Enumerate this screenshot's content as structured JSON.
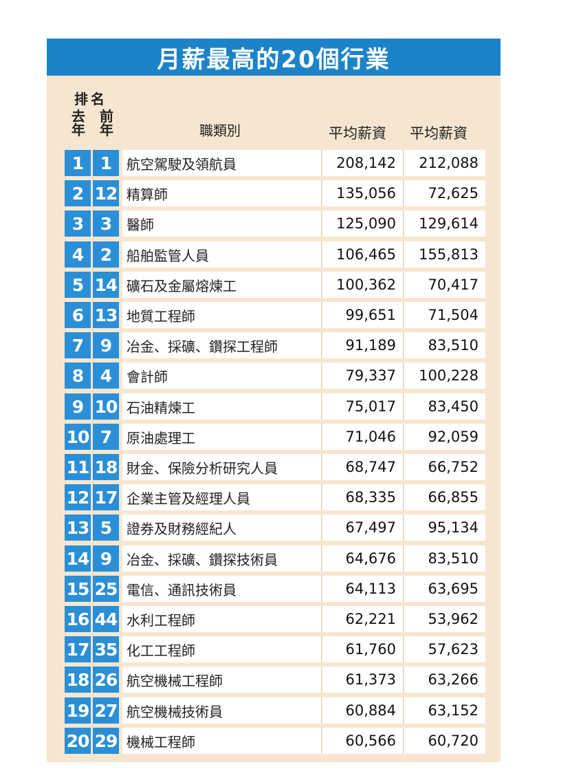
{
  "title": "月薪最高的20個行業",
  "header": {
    "rank": "排名",
    "last_year": "去年",
    "prev_year": "前年",
    "job_category": "職類別",
    "salary_col1": "平均薪資",
    "salary_col2": "平均薪資"
  },
  "colors": {
    "title_bar": "#1d83c9",
    "rank_cell": "#2a8fd6",
    "card_bg": "#f7e6cf"
  },
  "rows": [
    {
      "last": "1",
      "prev": "1",
      "job": "航空駕駛及領航員",
      "salary_last": "208,142",
      "salary_prev": "212,088"
    },
    {
      "last": "2",
      "prev": "12",
      "job": "精算師",
      "salary_last": "135,056",
      "salary_prev": "72,625"
    },
    {
      "last": "3",
      "prev": "3",
      "job": "醫師",
      "salary_last": "125,090",
      "salary_prev": "129,614"
    },
    {
      "last": "4",
      "prev": "2",
      "job": "船舶監管人員",
      "salary_last": "106,465",
      "salary_prev": "155,813"
    },
    {
      "last": "5",
      "prev": "14",
      "job": "礦石及金屬熔煉工",
      "salary_last": "100,362",
      "salary_prev": "70,417"
    },
    {
      "last": "6",
      "prev": "13",
      "job": "地質工程師",
      "salary_last": "99,651",
      "salary_prev": "71,504"
    },
    {
      "last": "7",
      "prev": "9",
      "job": "冶金、採礦、鑽探工程師",
      "salary_last": "91,189",
      "salary_prev": "83,510"
    },
    {
      "last": "8",
      "prev": "4",
      "job": "會計師",
      "salary_last": "79,337",
      "salary_prev": "100,228"
    },
    {
      "last": "9",
      "prev": "10",
      "job": "石油精煉工",
      "salary_last": "75,017",
      "salary_prev": "83,450"
    },
    {
      "last": "10",
      "prev": "7",
      "job": "原油處理工",
      "salary_last": "71,046",
      "salary_prev": "92,059"
    },
    {
      "last": "11",
      "prev": "18",
      "job": "財金、保險分析研究人員",
      "salary_last": "68,747",
      "salary_prev": "66,752"
    },
    {
      "last": "12",
      "prev": "17",
      "job": "企業主管及經理人員",
      "salary_last": "68,335",
      "salary_prev": "66,855"
    },
    {
      "last": "13",
      "prev": "5",
      "job": "證券及財務經紀人",
      "salary_last": "67,497",
      "salary_prev": "95,134"
    },
    {
      "last": "14",
      "prev": "9",
      "job": "冶金、採礦、鑽探技術員",
      "salary_last": "64,676",
      "salary_prev": "83,510"
    },
    {
      "last": "15",
      "prev": "25",
      "job": "電信、通訊技術員",
      "salary_last": "64,113",
      "salary_prev": "63,695"
    },
    {
      "last": "16",
      "prev": "44",
      "job": "水利工程師",
      "salary_last": "62,221",
      "salary_prev": "53,962"
    },
    {
      "last": "17",
      "prev": "35",
      "job": "化工工程師",
      "salary_last": "61,760",
      "salary_prev": "57,623"
    },
    {
      "last": "18",
      "prev": "26",
      "job": "航空機械工程師",
      "salary_last": "61,373",
      "salary_prev": "63,266"
    },
    {
      "last": "19",
      "prev": "27",
      "job": "航空機械技術員",
      "salary_last": "60,884",
      "salary_prev": "63,152"
    },
    {
      "last": "20",
      "prev": "29",
      "job": "機械工程師",
      "salary_last": "60,566",
      "salary_prev": "60,720"
    }
  ]
}
